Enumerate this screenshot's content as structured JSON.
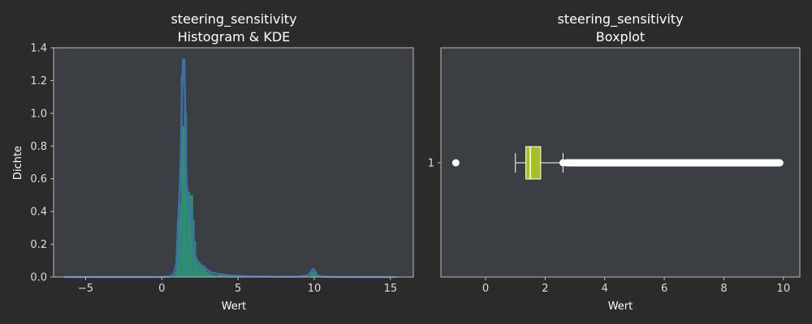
{
  "colors": {
    "figure_bg": "#2b2b2b",
    "axes_bg": "#3b3e42",
    "spine": "#bbbbbb",
    "text": "#ffffff",
    "hist_fill": "#2e9c80",
    "kde_line": "#3f6ea8",
    "box_fill": "#a6c126",
    "box_edge": "#ffffff",
    "outlier": "#ffffff"
  },
  "chart_data": [
    {
      "type": "histogram",
      "title_line1": "steering_sensitivity",
      "title_line2": "Histogram & KDE",
      "xlabel": "Wert",
      "ylabel": "Dichte",
      "xlim": [
        -7.1,
        16.5
      ],
      "ylim": [
        0,
        1.4
      ],
      "xticks": [
        -5,
        0,
        5,
        10,
        15
      ],
      "xtick_labels": [
        "−5",
        "0",
        "5",
        "10",
        "15"
      ],
      "yticks": [
        0.0,
        0.2,
        0.4,
        0.6,
        0.8,
        1.0,
        1.2,
        1.4
      ],
      "ytick_labels": [
        "0.0",
        "0.2",
        "0.4",
        "0.6",
        "0.8",
        "1.0",
        "1.2",
        "1.4"
      ],
      "hist_bins": [
        {
          "x0": 0.75,
          "x1": 0.85,
          "y": 0.01
        },
        {
          "x0": 0.85,
          "x1": 0.95,
          "y": 0.03
        },
        {
          "x0": 0.95,
          "x1": 1.05,
          "y": 0.12
        },
        {
          "x0": 1.05,
          "x1": 1.15,
          "y": 0.36
        },
        {
          "x0": 1.15,
          "x1": 1.25,
          "y": 0.45
        },
        {
          "x0": 1.25,
          "x1": 1.35,
          "y": 1.23
        },
        {
          "x0": 1.35,
          "x1": 1.45,
          "y": 0.92
        },
        {
          "x0": 1.45,
          "x1": 1.55,
          "y": 1.33
        },
        {
          "x0": 1.55,
          "x1": 1.65,
          "y": 1.0
        },
        {
          "x0": 1.65,
          "x1": 1.75,
          "y": 0.53
        },
        {
          "x0": 1.75,
          "x1": 1.85,
          "y": 0.52
        },
        {
          "x0": 1.85,
          "x1": 1.95,
          "y": 0.5
        },
        {
          "x0": 1.95,
          "x1": 2.05,
          "y": 0.5
        },
        {
          "x0": 2.05,
          "x1": 2.15,
          "y": 0.35
        },
        {
          "x0": 2.15,
          "x1": 2.25,
          "y": 0.22
        },
        {
          "x0": 2.25,
          "x1": 2.35,
          "y": 0.12
        },
        {
          "x0": 2.35,
          "x1": 2.45,
          "y": 0.1
        },
        {
          "x0": 2.45,
          "x1": 2.55,
          "y": 0.09
        },
        {
          "x0": 2.55,
          "x1": 2.65,
          "y": 0.08
        },
        {
          "x0": 2.65,
          "x1": 2.75,
          "y": 0.07
        },
        {
          "x0": 2.75,
          "x1": 2.85,
          "y": 0.07
        },
        {
          "x0": 2.85,
          "x1": 2.95,
          "y": 0.05
        },
        {
          "x0": 2.95,
          "x1": 3.1,
          "y": 0.03
        },
        {
          "x0": 3.1,
          "x1": 3.3,
          "y": 0.02
        },
        {
          "x0": 3.3,
          "x1": 3.5,
          "y": 0.015
        },
        {
          "x0": 3.5,
          "x1": 3.7,
          "y": 0.01
        },
        {
          "x0": 3.7,
          "x1": 3.9,
          "y": 0.015
        },
        {
          "x0": 3.9,
          "x1": 4.2,
          "y": 0.01
        },
        {
          "x0": 4.2,
          "x1": 4.6,
          "y": 0.008
        },
        {
          "x0": 4.6,
          "x1": 5.0,
          "y": 0.006
        },
        {
          "x0": 5.0,
          "x1": 6.0,
          "y": 0.004
        },
        {
          "x0": 6.0,
          "x1": 7.0,
          "y": 0.003
        },
        {
          "x0": 9.7,
          "x1": 9.9,
          "y": 0.03
        },
        {
          "x0": 9.9,
          "x1": 10.05,
          "y": 0.05
        },
        {
          "x0": 10.05,
          "x1": 10.2,
          "y": 0.02
        }
      ],
      "kde": {
        "x": [
          -6.4,
          -4,
          -2,
          0,
          0.5,
          0.8,
          0.95,
          1.05,
          1.15,
          1.25,
          1.33,
          1.4,
          1.48,
          1.55,
          1.62,
          1.7,
          1.8,
          1.9,
          2.0,
          2.1,
          2.2,
          2.35,
          2.5,
          2.7,
          2.9,
          3.2,
          3.6,
          4.0,
          4.5,
          5,
          6,
          7,
          8,
          9,
          9.6,
          9.8,
          9.95,
          10.05,
          10.2,
          10.4,
          11,
          13,
          15.4
        ],
        "y": [
          0,
          0,
          0,
          0,
          0.003,
          0.02,
          0.08,
          0.3,
          0.48,
          0.75,
          1.15,
          1.33,
          1.3,
          0.95,
          0.6,
          0.48,
          0.45,
          0.38,
          0.3,
          0.2,
          0.13,
          0.09,
          0.07,
          0.06,
          0.05,
          0.03,
          0.02,
          0.015,
          0.01,
          0.007,
          0.004,
          0.003,
          0.002,
          0.003,
          0.01,
          0.035,
          0.05,
          0.035,
          0.01,
          0.003,
          0.001,
          0,
          0
        ]
      }
    },
    {
      "type": "boxplot",
      "title_line1": "steering_sensitivity",
      "title_line2": "Boxplot",
      "xlabel": "Wert",
      "xlim": [
        -1.5,
        10.55
      ],
      "xticks": [
        0,
        2,
        4,
        6,
        8,
        10
      ],
      "xtick_labels": [
        "0",
        "2",
        "4",
        "6",
        "8",
        "10"
      ],
      "ytick_labels": [
        "1"
      ],
      "box": {
        "whisker_low": 1.0,
        "q1": 1.35,
        "median": 1.5,
        "q3": 1.85,
        "whisker_high": 2.6
      },
      "outliers_low": [
        -1.0
      ],
      "outliers_high_range": [
        2.6,
        10.0
      ]
    }
  ]
}
